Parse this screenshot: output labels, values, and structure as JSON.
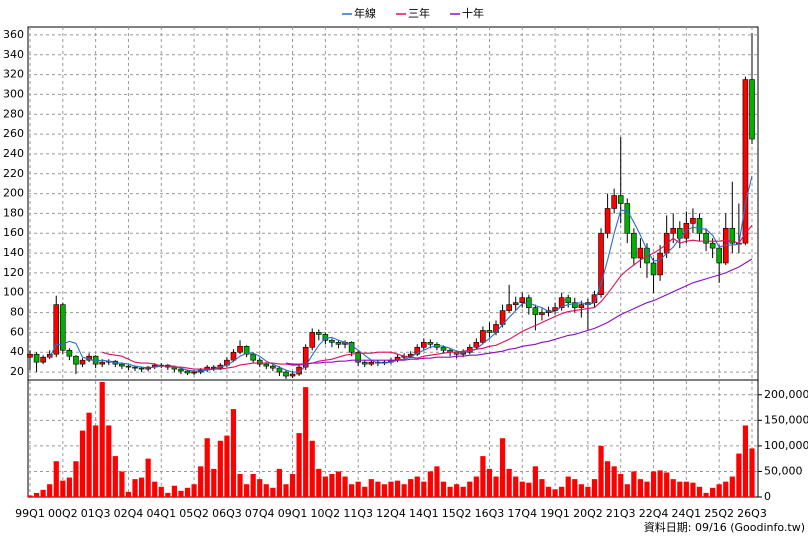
{
  "chart_data": {
    "type": "candlestick",
    "grid": true,
    "legend": "top",
    "footer": "資料日期: 09/16  (Goodinfo.tw)",
    "up_color": "#ff0000",
    "down_color": "#00b000",
    "ylim": [
      12,
      368
    ],
    "yticks": [
      20,
      40,
      60,
      80,
      100,
      120,
      140,
      160,
      180,
      200,
      220,
      240,
      260,
      280,
      300,
      320,
      340,
      360
    ],
    "categories": [
      "99Q1",
      null,
      null,
      null,
      null,
      "00Q2",
      null,
      null,
      null,
      null,
      "01Q3",
      null,
      null,
      null,
      null,
      "02Q4",
      null,
      null,
      null,
      null,
      "04Q1",
      null,
      null,
      null,
      null,
      "05Q2",
      null,
      null,
      null,
      null,
      "06Q3",
      null,
      null,
      null,
      null,
      "07Q4",
      null,
      null,
      null,
      null,
      "09Q1",
      null,
      null,
      null,
      null,
      "10Q2",
      null,
      null,
      null,
      null,
      "11Q3",
      null,
      null,
      null,
      null,
      "12Q4",
      null,
      null,
      null,
      null,
      "14Q1",
      null,
      null,
      null,
      null,
      "15Q2",
      null,
      null,
      null,
      null,
      "16Q3",
      null,
      null,
      null,
      null,
      "17Q4",
      null,
      null,
      null,
      null,
      "19Q1",
      null,
      null,
      null,
      null,
      "20Q2",
      null,
      null,
      null,
      null,
      "21Q3",
      null,
      null,
      null,
      null,
      "22Q4",
      null,
      null,
      null,
      null,
      "24Q1",
      null,
      null,
      null,
      null,
      "25Q2",
      null,
      null,
      null,
      null,
      "26Q3"
    ],
    "open": [
      35,
      38,
      30,
      35,
      38,
      88,
      42,
      36,
      28,
      32,
      36,
      28,
      30,
      31,
      28,
      26,
      25,
      24,
      23,
      25,
      27,
      27,
      25,
      23,
      21,
      19,
      20,
      22,
      25,
      24,
      27,
      32,
      40,
      46,
      38,
      32,
      28,
      26,
      24,
      20,
      16,
      18,
      25,
      45,
      60,
      58,
      52,
      50,
      48,
      50,
      40,
      30,
      28,
      30,
      29,
      30,
      32,
      35,
      36,
      38,
      45,
      50,
      48,
      45,
      42,
      40,
      38,
      40,
      45,
      50,
      62,
      60,
      68,
      82,
      88,
      90,
      95,
      85,
      78,
      80,
      82,
      85,
      95,
      90,
      85,
      88,
      90,
      98,
      160,
      185,
      198,
      190,
      160,
      135,
      145,
      130,
      118,
      140,
      160,
      165,
      155,
      170,
      175,
      160,
      150,
      145,
      130,
      165,
      150,
      150,
      315
    ],
    "high": [
      42,
      40,
      37,
      42,
      97,
      90,
      44,
      37,
      34,
      39,
      37,
      33,
      33,
      32,
      29,
      27,
      26,
      25,
      26,
      29,
      29,
      28,
      26,
      24,
      22,
      22,
      24,
      27,
      27,
      29,
      35,
      43,
      52,
      47,
      40,
      34,
      30,
      28,
      26,
      22,
      21,
      28,
      48,
      64,
      63,
      60,
      54,
      52,
      52,
      51,
      42,
      32,
      32,
      32,
      32,
      34,
      38,
      39,
      41,
      48,
      54,
      53,
      50,
      47,
      44,
      42,
      43,
      48,
      54,
      66,
      70,
      72,
      88,
      108,
      96,
      100,
      98,
      88,
      84,
      86,
      90,
      100,
      98,
      95,
      92,
      94,
      102,
      165,
      200,
      205,
      257,
      195,
      165,
      155,
      150,
      135,
      148,
      178,
      180,
      172,
      182,
      185,
      180,
      165,
      155,
      148,
      180,
      212,
      190,
      318,
      362
    ],
    "low": [
      22,
      20,
      28,
      33,
      35,
      38,
      32,
      18,
      25,
      30,
      24,
      25,
      27,
      25,
      23,
      22,
      21,
      20,
      21,
      23,
      24,
      22,
      20,
      18,
      17,
      17,
      18,
      20,
      21,
      22,
      25,
      30,
      38,
      35,
      29,
      25,
      23,
      21,
      16,
      13,
      14,
      16,
      22,
      42,
      52,
      48,
      45,
      44,
      44,
      36,
      26,
      25,
      26,
      26,
      27,
      28,
      30,
      33,
      34,
      36,
      42,
      44,
      42,
      39,
      36,
      34,
      35,
      38,
      43,
      48,
      55,
      57,
      65,
      80,
      82,
      85,
      78,
      62,
      72,
      76,
      78,
      82,
      85,
      80,
      75,
      62,
      85,
      95,
      155,
      180,
      170,
      150,
      128,
      125,
      115,
      100,
      112,
      135,
      150,
      145,
      150,
      160,
      152,
      142,
      135,
      110,
      128,
      140,
      140,
      148,
      250
    ],
    "close": [
      38,
      30,
      35,
      38,
      88,
      42,
      36,
      28,
      32,
      36,
      28,
      30,
      31,
      28,
      26,
      25,
      24,
      23,
      25,
      27,
      27,
      25,
      23,
      21,
      19,
      20,
      22,
      25,
      24,
      27,
      32,
      40,
      46,
      38,
      32,
      28,
      26,
      24,
      20,
      16,
      18,
      25,
      45,
      60,
      58,
      52,
      50,
      48,
      50,
      40,
      30,
      28,
      30,
      29,
      30,
      32,
      35,
      36,
      38,
      45,
      50,
      48,
      45,
      42,
      40,
      38,
      40,
      45,
      50,
      62,
      60,
      68,
      82,
      88,
      90,
      95,
      85,
      78,
      80,
      82,
      85,
      95,
      90,
      85,
      88,
      90,
      98,
      160,
      185,
      198,
      190,
      160,
      135,
      145,
      130,
      118,
      140,
      160,
      165,
      155,
      170,
      175,
      160,
      150,
      145,
      130,
      165,
      150,
      150,
      315,
      255
    ],
    "series": [
      {
        "name": "年線",
        "color": "#2a6fc9",
        "values": [
          null,
          null,
          null,
          35,
          48,
          48,
          51,
          49,
          35,
          33,
          31,
          32,
          31,
          29,
          29,
          28,
          26,
          25,
          24,
          25,
          26,
          26,
          26,
          24,
          22,
          21,
          21,
          22,
          23,
          25,
          27,
          31,
          36,
          39,
          39,
          36,
          31,
          28,
          25,
          22,
          20,
          20,
          26,
          37,
          47,
          54,
          55,
          52,
          50,
          47,
          42,
          37,
          32,
          29,
          29,
          30,
          32,
          33,
          35,
          39,
          42,
          45,
          47,
          46,
          44,
          41,
          40,
          41,
          43,
          49,
          54,
          60,
          68,
          75,
          82,
          89,
          90,
          87,
          85,
          81,
          81,
          86,
          88,
          89,
          90,
          88,
          90,
          109,
          133,
          160,
          183,
          183,
          171,
          158,
          143,
          132,
          133,
          140,
          146,
          155,
          163,
          166,
          165,
          164,
          158,
          146,
          148,
          148,
          149,
          190,
          218
        ]
      },
      {
        "name": "三年",
        "color": "#e0105a",
        "values": [
          null,
          null,
          null,
          null,
          null,
          null,
          null,
          null,
          null,
          null,
          null,
          40,
          38,
          37,
          36,
          33,
          30,
          29,
          29,
          28,
          26,
          26,
          25,
          25,
          24,
          23,
          23,
          23,
          23,
          23,
          24,
          25,
          27,
          28,
          29,
          29,
          29,
          29,
          28,
          28,
          27,
          27,
          28,
          29,
          31,
          32,
          33,
          35,
          37,
          38,
          39,
          39,
          39,
          40,
          40,
          40,
          38,
          36,
          35,
          34,
          36,
          37,
          38,
          39,
          40,
          40,
          41,
          42,
          43,
          44,
          46,
          47,
          50,
          53,
          57,
          61,
          64,
          67,
          70,
          73,
          76,
          79,
          81,
          82,
          83,
          84,
          85,
          91,
          99,
          108,
          117,
          123,
          128,
          133,
          137,
          140,
          144,
          149,
          155,
          150,
          152,
          153,
          152,
          152,
          152,
          152,
          153,
          152,
          150,
          160,
          168
        ]
      },
      {
        "name": "十年",
        "color": "#8a10c8",
        "values": [
          null,
          null,
          null,
          null,
          null,
          null,
          null,
          null,
          null,
          null,
          null,
          null,
          null,
          null,
          null,
          null,
          null,
          null,
          null,
          null,
          null,
          null,
          null,
          null,
          null,
          null,
          null,
          null,
          null,
          null,
          null,
          null,
          null,
          null,
          null,
          null,
          null,
          null,
          null,
          29,
          28,
          28,
          28,
          29,
          29,
          30,
          30,
          31,
          31,
          32,
          32,
          32,
          32,
          32,
          32,
          32,
          32,
          32,
          33,
          33,
          34,
          34,
          35,
          35,
          35,
          36,
          36,
          37,
          37,
          38,
          39,
          40,
          41,
          43,
          44,
          46,
          47,
          48,
          50,
          51,
          53,
          55,
          57,
          58,
          60,
          62,
          64,
          67,
          70,
          74,
          78,
          81,
          84,
          87,
          90,
          92,
          95,
          98,
          101,
          104,
          107,
          110,
          112,
          114,
          116,
          118,
          120,
          123,
          126,
          130,
          134
        ]
      }
    ],
    "volume": {
      "color": "#ff0000",
      "ylim": [
        0,
        225000
      ],
      "yticks": [
        0,
        {
          "value": 50000,
          "label": "50,000"
        },
        {
          "value": 100000,
          "label": "100,000"
        },
        {
          "value": 150000,
          "label": "150,000"
        },
        {
          "value": 200000,
          "label": "200,000"
        }
      ],
      "values": [
        3000,
        8000,
        14000,
        25000,
        70000,
        32000,
        38000,
        70000,
        130000,
        165000,
        140000,
        225000,
        140000,
        80000,
        50000,
        10000,
        35000,
        38000,
        75000,
        30000,
        20000,
        8000,
        22000,
        12000,
        18000,
        25000,
        60000,
        115000,
        55000,
        110000,
        120000,
        172000,
        45000,
        25000,
        45000,
        35000,
        25000,
        18000,
        55000,
        25000,
        45000,
        125000,
        215000,
        110000,
        55000,
        40000,
        45000,
        50000,
        40000,
        25000,
        30000,
        20000,
        35000,
        30000,
        25000,
        30000,
        32000,
        25000,
        35000,
        40000,
        30000,
        50000,
        60000,
        30000,
        20000,
        25000,
        20000,
        30000,
        40000,
        80000,
        55000,
        40000,
        115000,
        55000,
        40000,
        30000,
        28000,
        60000,
        35000,
        20000,
        15000,
        20000,
        40000,
        35000,
        25000,
        20000,
        35000,
        100000,
        70000,
        60000,
        45000,
        25000,
        50000,
        35000,
        30000,
        50000,
        52000,
        48000,
        35000,
        30000,
        30000,
        28000,
        20000,
        8000,
        18000,
        25000,
        30000,
        40000,
        85000,
        140000,
        95000
      ]
    }
  }
}
